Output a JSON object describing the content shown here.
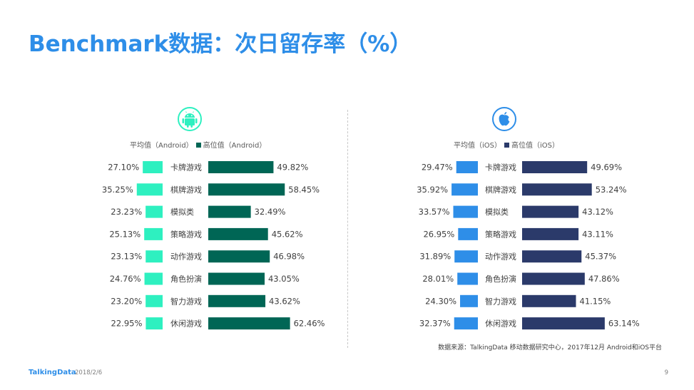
{
  "title": "Benchmark数据：次日留存率（%）",
  "colors": {
    "title": "#2e8ee8",
    "android_avg": "#2ef0c0",
    "android_high": "#006655",
    "ios_avg": "#2e8ee8",
    "ios_high": "#2b3a6a"
  },
  "icons": {
    "android": "android-robot-icon",
    "ios": "apple-logo-icon"
  },
  "chart_data": [
    {
      "type": "bar",
      "platform": "Android",
      "categories": [
        "卡牌游戏",
        "棋牌游戏",
        "模拟类",
        "策略游戏",
        "动作游戏",
        "角色扮演",
        "智力游戏",
        "休闲游戏"
      ],
      "series": [
        {
          "name": "平均值（Android）",
          "values": [
            27.1,
            35.25,
            23.23,
            25.13,
            23.13,
            24.76,
            23.2,
            22.95
          ],
          "labels": [
            "27.10%",
            "35.25%",
            "23.23%",
            "25.13%",
            "23.13%",
            "24.76%",
            "23.20%",
            "22.95%"
          ]
        },
        {
          "name": "高位值（Android）",
          "values": [
            49.82,
            58.45,
            32.49,
            45.62,
            46.98,
            43.05,
            43.62,
            62.46
          ],
          "labels": [
            "49.82%",
            "58.45%",
            "32.49%",
            "45.62%",
            "46.98%",
            "43.05%",
            "43.62%",
            "62.46%"
          ]
        }
      ]
    },
    {
      "type": "bar",
      "platform": "iOS",
      "categories": [
        "卡牌游戏",
        "棋牌游戏",
        "模拟类",
        "策略游戏",
        "动作游戏",
        "角色扮演",
        "智力游戏",
        "休闲游戏"
      ],
      "series": [
        {
          "name": "平均值（iOS）",
          "values": [
            29.47,
            35.92,
            33.57,
            26.95,
            31.89,
            28.01,
            24.3,
            32.37
          ],
          "labels": [
            "29.47%",
            "35.92%",
            "33.57%",
            "26.95%",
            "31.89%",
            "28.01%",
            "24.30%",
            "32.37%"
          ]
        },
        {
          "name": "高位值（iOS）",
          "values": [
            49.69,
            53.24,
            43.12,
            43.11,
            45.37,
            47.86,
            41.15,
            63.14
          ],
          "labels": [
            "49.69%",
            "53.24%",
            "43.12%",
            "43.11%",
            "45.37%",
            "47.86%",
            "41.15%",
            "63.14%"
          ]
        }
      ]
    }
  ],
  "source": "数据来源：TalkingData 移动数据研究中心，2017年12月 Android和iOS平台",
  "footer": {
    "brand": "TalkingData",
    "date": "2018/2/6",
    "page": "9"
  }
}
